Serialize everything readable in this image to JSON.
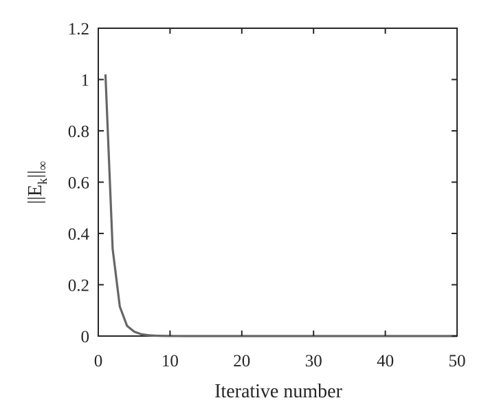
{
  "chart_data": {
    "type": "line",
    "title": "",
    "xlabel": "Iterative number",
    "ylabel": {
      "open": "||E",
      "sub1": "k",
      "mid": "||",
      "sub2": "∞"
    },
    "xlim": [
      0,
      50
    ],
    "ylim": [
      0,
      1.2
    ],
    "xticks": [
      "0",
      "10",
      "20",
      "30",
      "40",
      "50"
    ],
    "yticks": [
      "0",
      "0.2",
      "0.4",
      "0.6",
      "0.8",
      "1",
      "1.2"
    ],
    "grid": false,
    "line_color": "#666666",
    "axis_color": "#262626",
    "series": [
      {
        "x": [
          1,
          2,
          3,
          4,
          5,
          6,
          7,
          8,
          9,
          10,
          11,
          12,
          13,
          14,
          15,
          16,
          17,
          18,
          19,
          20,
          21,
          22,
          23,
          24,
          25,
          26,
          27,
          28,
          29,
          30,
          31,
          32,
          33,
          34,
          35,
          36,
          37,
          38,
          39,
          40,
          41,
          42,
          43,
          44,
          45,
          46,
          47,
          48,
          49,
          50
        ],
        "values": [
          1.02,
          0.34,
          0.115,
          0.04,
          0.017,
          0.007,
          0.003,
          0.0013,
          0.0006,
          0.0003,
          0.00012,
          5e-05,
          2e-05,
          1e-05,
          0,
          0,
          0,
          0,
          0,
          0,
          0,
          0,
          0,
          0,
          0,
          0,
          0,
          0,
          0,
          0,
          0,
          0,
          0,
          0,
          0,
          0,
          0,
          0,
          0,
          0,
          0,
          0,
          0,
          0,
          0,
          0,
          0,
          0,
          0,
          0
        ]
      }
    ]
  }
}
